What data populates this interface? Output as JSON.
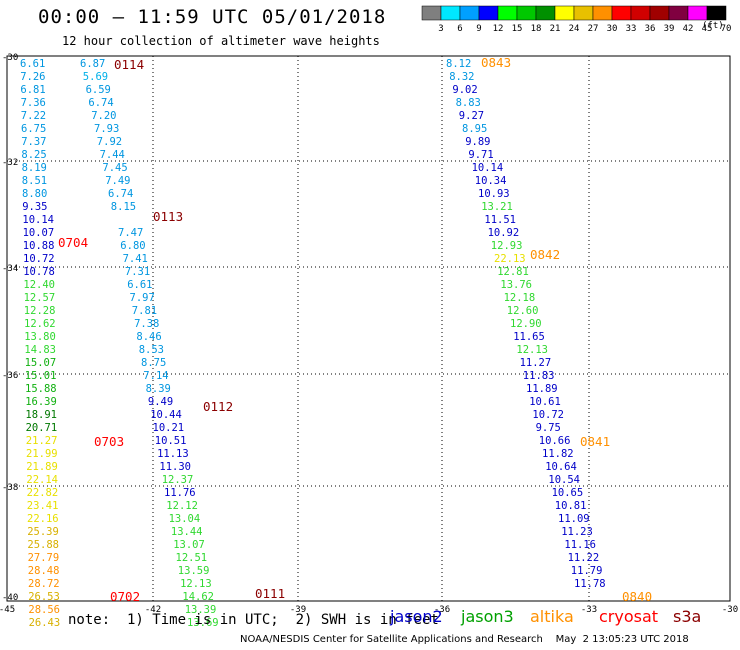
{
  "header": {
    "title": "00:00 – 11:59 UTC 05/01/2018",
    "subtitle": "12 hour collection of altimeter wave heights",
    "units": "(ft)"
  },
  "colorbar": [
    {
      "value": "3",
      "color": "#7f7f7f"
    },
    {
      "value": "6",
      "color": "#00e8ff"
    },
    {
      "value": "9",
      "color": "#00a0ff"
    },
    {
      "value": "12",
      "color": "#0000ff"
    },
    {
      "value": "15",
      "color": "#00ff00"
    },
    {
      "value": "18",
      "color": "#00c800"
    },
    {
      "value": "21",
      "color": "#009000"
    },
    {
      "value": "24",
      "color": "#ffff00"
    },
    {
      "value": "27",
      "color": "#e8c000"
    },
    {
      "value": "30",
      "color": "#ff9000"
    },
    {
      "value": "33",
      "color": "#ff0000"
    },
    {
      "value": "36",
      "color": "#d00000"
    },
    {
      "value": "39",
      "color": "#a00000"
    },
    {
      "value": "42",
      "color": "#800040"
    },
    {
      "value": "45",
      "color": "#ff00ff"
    },
    {
      "value": "70",
      "color": "#000000"
    }
  ],
  "axes": {
    "y_labels": [
      "-30",
      "-32",
      "-34",
      "-36",
      "-38",
      "-40"
    ],
    "x_labels": [
      "-45",
      "-42",
      "-39",
      "-36",
      "-33",
      "-30"
    ]
  },
  "tracks": [
    {
      "col": "a",
      "start_row": 0,
      "values": [
        "6.61",
        "7.26",
        "6.81",
        "7.36",
        "7.22",
        "6.75",
        "7.37",
        "8.25",
        "8.19",
        "8.51",
        "8.80",
        "9.35",
        "10.14",
        "10.07",
        "10.88",
        "10.72",
        "10.78",
        "12.40",
        "12.57",
        "12.28",
        "12.62",
        "13.80",
        "14.83",
        "15.07",
        "15.01",
        "15.88",
        "16.39",
        "18.91",
        "20.71",
        "21.27",
        "21.99",
        "21.89",
        "22.14",
        "22.82",
        "23.41",
        "22.16",
        "25.39",
        "25.88",
        "27.79",
        "28.48",
        "28.72",
        "26.53",
        "28.56",
        "26.43"
      ]
    },
    {
      "col": "b",
      "start_row": 0,
      "values": [
        "6.87",
        "5.69",
        "6.59",
        "6.74",
        "7.20",
        "7.93",
        "7.92",
        "7.44",
        "7.45",
        "7.49",
        "6.74",
        "8.15"
      ]
    },
    {
      "col": "c",
      "start_row": 13,
      "values": [
        "7.47",
        "6.80",
        "7.41",
        "7.31",
        "6.61",
        "7.97",
        "7.81",
        "7.38",
        "8.46",
        "8.53",
        "8.75",
        "7.14",
        "8.39",
        "9.49",
        "10.44",
        "10.21",
        "10.51",
        "11.13",
        "11.30",
        "12.37",
        "11.76",
        "12.12",
        "13.04",
        "13.44",
        "13.07",
        "12.51",
        "13.59",
        "12.13",
        "14.62",
        "13.39",
        "13.69"
      ]
    },
    {
      "col": "d",
      "start_row": 0,
      "values": [
        "8.12",
        "8.32",
        "9.02",
        "8.83",
        "9.27",
        "8.95",
        "9.89",
        "9.71",
        "10.14",
        "10.34",
        "10.93",
        "13.21",
        "11.51",
        "10.92",
        "12.93",
        "22.13",
        "12.81",
        "13.76",
        "12.18",
        "12.60",
        "12.90",
        "11.65",
        "12.13",
        "11.27",
        "11.83",
        "11.89",
        "10.61",
        "10.72",
        "9.75",
        "10.66",
        "11.82",
        "10.64",
        "10.54",
        "10.65",
        "10.81",
        "11.09",
        "11.23",
        "11.16",
        "11.22",
        "11.79",
        "11.78"
      ]
    }
  ],
  "time_labels": [
    {
      "text": "0114",
      "color": "#8b0000"
    },
    {
      "text": "0113",
      "color": "#8b0000"
    },
    {
      "text": "0704",
      "color": "#ff0000"
    },
    {
      "text": "0112",
      "color": "#8b0000"
    },
    {
      "text": "0703",
      "color": "#ff0000"
    },
    {
      "text": "0111",
      "color": "#8b0000"
    },
    {
      "text": "0702",
      "color": "#ff0000"
    },
    {
      "text": "0843",
      "color": "#ff9000"
    },
    {
      "text": "0842",
      "color": "#ff9000"
    },
    {
      "text": "0841",
      "color": "#ff9000"
    },
    {
      "text": "0840",
      "color": "#ff9000"
    }
  ],
  "footer": {
    "note": "note:  1) Time is in UTC;  2) SWH is in feet",
    "legend": [
      {
        "name": "jason2",
        "color": "#0000c8"
      },
      {
        "name": "jason3",
        "color": "#00a000"
      },
      {
        "name": "altika",
        "color": "#ff9000"
      },
      {
        "name": "cryosat",
        "color": "#ff0000"
      },
      {
        "name": "s3a",
        "color": "#8b0000"
      }
    ],
    "credit": "NOAA/NESDIS Center for Satellite Applications and Research    May  2 13:05:23 UTC 2018"
  }
}
